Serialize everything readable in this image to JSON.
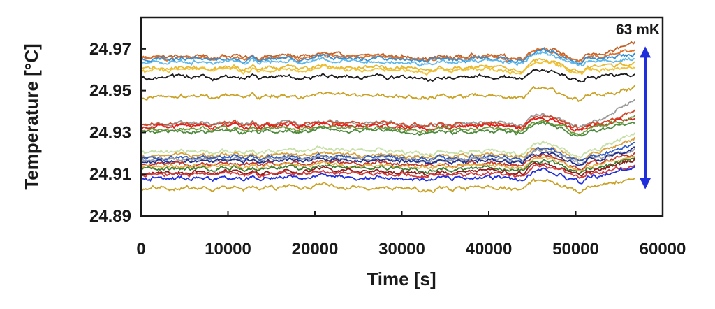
{
  "chart_data": {
    "type": "line",
    "title": "",
    "xlabel": "Time [s]",
    "ylabel": "Temperature [°C]",
    "xlim": [
      0,
      60000
    ],
    "ylim": [
      24.89,
      24.985
    ],
    "x_ticks": [
      "0",
      "10000",
      "20000",
      "30000",
      "40000",
      "50000",
      "60000"
    ],
    "y_ticks": [
      "24.89",
      "24.91",
      "24.93",
      "24.95",
      "24.97"
    ],
    "x_end": 56800,
    "grid": false,
    "legend": "none",
    "annotation": {
      "text": "63 mK",
      "y_from": 24.9055,
      "y_to": 24.9685,
      "x": 58000,
      "color": "#1f2fdc"
    },
    "series": [
      {
        "color": "#c0622a",
        "base": 24.9665,
        "end_rise": 0.006
      },
      {
        "color": "#e0712c",
        "base": 24.9658,
        "end_rise": 0.004
      },
      {
        "color": "#2f8fd8",
        "base": 24.9652,
        "end_rise": 0.002
      },
      {
        "color": "#5fb7e6",
        "base": 24.964,
        "end_rise": 0.001
      },
      {
        "color": "#e6b82e",
        "base": 24.961,
        "end_rise": 0.002
      },
      {
        "color": "#f1c232",
        "base": 24.96,
        "end_rise": 0.001
      },
      {
        "color": "#1b1b1b",
        "base": 24.9565,
        "end_rise": 0.001
      },
      {
        "color": "#c9a227",
        "base": 24.9475,
        "end_rise": 0.004
      },
      {
        "color": "#9a9a9a",
        "base": 24.9345,
        "end_rise": 0.011
      },
      {
        "color": "#d04a2a",
        "base": 24.934,
        "end_rise": 0.006
      },
      {
        "color": "#e21e1e",
        "base": 24.933,
        "end_rise": 0.004
      },
      {
        "color": "#6c9a3a",
        "base": 24.9318,
        "end_rise": 0.006
      },
      {
        "color": "#4e8a3e",
        "base": 24.9305,
        "end_rise": 0.004
      },
      {
        "color": "#c6e0a8",
        "base": 24.921,
        "end_rise": 0.009
      },
      {
        "color": "#d9a03a",
        "base": 24.9192,
        "end_rise": 0.008
      },
      {
        "color": "#2a5bc8",
        "base": 24.918,
        "end_rise": 0.006
      },
      {
        "color": "#a0a0a0",
        "base": 24.9172,
        "end_rise": 0.004
      },
      {
        "color": "#1f2f8f",
        "base": 24.9165,
        "end_rise": 0.006
      },
      {
        "color": "#c0392b",
        "base": 24.915,
        "end_rise": 0.005
      },
      {
        "color": "#e3b04b",
        "base": 24.914,
        "end_rise": 0.004
      },
      {
        "color": "#3a7d33",
        "base": 24.9128,
        "end_rise": 0.004
      },
      {
        "color": "#8e1a1a",
        "base": 24.9112,
        "end_rise": 0.006
      },
      {
        "color": "#d33a3a",
        "base": 24.9102,
        "end_rise": 0.004
      },
      {
        "color": "#1f2fdc",
        "base": 24.9082,
        "end_rise": 0.005
      },
      {
        "color": "#c9a227",
        "base": 24.9035,
        "end_rise": 0.005
      }
    ]
  }
}
